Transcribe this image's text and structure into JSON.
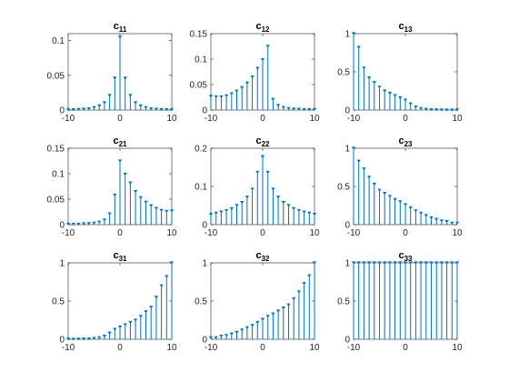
{
  "figure": {
    "background": "#ffffff",
    "stem_color": "#0072bd",
    "axis_color": "#262626"
  },
  "chart_data": [
    {
      "type": "stem",
      "title": "c",
      "title_sub": "11",
      "x": [
        -10,
        -9,
        -8,
        -7,
        -6,
        -5,
        -4,
        -3,
        -2,
        -1,
        0,
        1,
        2,
        3,
        4,
        5,
        6,
        7,
        8,
        9,
        10
      ],
      "y": [
        0.0003,
        0.0005,
        0.0008,
        0.0013,
        0.002,
        0.0035,
        0.006,
        0.0105,
        0.021,
        0.046,
        0.105,
        0.046,
        0.021,
        0.0105,
        0.006,
        0.0035,
        0.002,
        0.0013,
        0.0008,
        0.0005,
        0.0003
      ],
      "xlim": [
        -10,
        10
      ],
      "ylim": [
        0,
        0.11
      ],
      "xticks": [
        -10,
        0,
        10
      ],
      "xtick_labels": [
        "-10",
        "0",
        "10"
      ],
      "yticks": [
        0,
        0.05,
        0.1
      ],
      "ytick_labels": [
        "0",
        "0.05",
        "0.1"
      ]
    },
    {
      "type": "stem",
      "title": "c",
      "title_sub": "12",
      "x": [
        -10,
        -9,
        -8,
        -7,
        -6,
        -5,
        -4,
        -3,
        -2,
        -1,
        0,
        1,
        2,
        3,
        4,
        5,
        6,
        7,
        8,
        9,
        10
      ],
      "y": [
        0.027,
        0.026,
        0.026,
        0.028,
        0.032,
        0.037,
        0.044,
        0.053,
        0.065,
        0.082,
        0.099,
        0.125,
        0.021,
        0.009,
        0.005,
        0.003,
        0.002,
        0.0015,
        0.001,
        0.001,
        0.001
      ],
      "xlim": [
        -10,
        10
      ],
      "ylim": [
        0,
        0.15
      ],
      "xticks": [
        -10,
        0,
        10
      ],
      "xtick_labels": [
        "-10",
        "0",
        "10"
      ],
      "yticks": [
        0,
        0.05,
        0.1,
        0.15
      ],
      "ytick_labels": [
        "0",
        "0.05",
        "0.1",
        "0.15"
      ]
    },
    {
      "type": "stem",
      "title": "c",
      "title_sub": "13",
      "x": [
        -10,
        -9,
        -8,
        -7,
        -6,
        -5,
        -4,
        -3,
        -2,
        -1,
        0,
        1,
        2,
        3,
        4,
        5,
        6,
        7,
        8,
        9,
        10
      ],
      "y": [
        1,
        0.82,
        0.55,
        0.42,
        0.36,
        0.3,
        0.25,
        0.22,
        0.19,
        0.16,
        0.13,
        0.08,
        0.04,
        0.02,
        0.01,
        0.005,
        0.003,
        0.002,
        0.001,
        0.001,
        0.001
      ],
      "xlim": [
        -10,
        10
      ],
      "ylim": [
        0,
        1
      ],
      "xticks": [
        -10,
        0,
        10
      ],
      "xtick_labels": [
        "-10",
        "0",
        "10"
      ],
      "yticks": [
        0,
        0.5,
        1
      ],
      "ytick_labels": [
        "0",
        "0.5",
        "1"
      ]
    },
    {
      "type": "stem",
      "title": "c",
      "title_sub": "21",
      "x": [
        -10,
        -9,
        -8,
        -7,
        -6,
        -5,
        -4,
        -3,
        -2,
        -1,
        0,
        1,
        2,
        3,
        4,
        5,
        6,
        7,
        8,
        9,
        10
      ],
      "y": [
        0.001,
        0.001,
        0.001,
        0.0015,
        0.002,
        0.003,
        0.005,
        0.009,
        0.021,
        0.058,
        0.125,
        0.099,
        0.082,
        0.065,
        0.053,
        0.044,
        0.037,
        0.032,
        0.028,
        0.026,
        0.027
      ],
      "xlim": [
        -10,
        10
      ],
      "ylim": [
        0,
        0.15
      ],
      "xticks": [
        -10,
        0,
        10
      ],
      "xtick_labels": [
        "-10",
        "0",
        "10"
      ],
      "yticks": [
        0,
        0.05,
        0.1,
        0.15
      ],
      "ytick_labels": [
        "0",
        "0.05",
        "0.1",
        "0.15"
      ]
    },
    {
      "type": "stem",
      "title": "c",
      "title_sub": "22",
      "x": [
        -10,
        -9,
        -8,
        -7,
        -6,
        -5,
        -4,
        -3,
        -2,
        -1,
        0,
        1,
        2,
        3,
        4,
        5,
        6,
        7,
        8,
        9,
        10
      ],
      "y": [
        0.027,
        0.03,
        0.033,
        0.037,
        0.042,
        0.05,
        0.058,
        0.072,
        0.093,
        0.137,
        0.178,
        0.137,
        0.093,
        0.072,
        0.058,
        0.05,
        0.042,
        0.037,
        0.033,
        0.03,
        0.027
      ],
      "xlim": [
        -10,
        10
      ],
      "ylim": [
        0,
        0.2
      ],
      "xticks": [
        -10,
        0,
        10
      ],
      "xtick_labels": [
        "-10",
        "0",
        "10"
      ],
      "yticks": [
        0,
        0.1,
        0.2
      ],
      "ytick_labels": [
        "0",
        "0.1",
        "0.2"
      ]
    },
    {
      "type": "stem",
      "title": "c",
      "title_sub": "23",
      "x": [
        -10,
        -9,
        -8,
        -7,
        -6,
        -5,
        -4,
        -3,
        -2,
        -1,
        0,
        1,
        2,
        3,
        4,
        5,
        6,
        7,
        8,
        9,
        10
      ],
      "y": [
        1,
        0.83,
        0.73,
        0.62,
        0.53,
        0.45,
        0.41,
        0.37,
        0.33,
        0.3,
        0.26,
        0.22,
        0.18,
        0.15,
        0.12,
        0.09,
        0.07,
        0.05,
        0.04,
        0.02,
        0.02
      ],
      "xlim": [
        -10,
        10
      ],
      "ylim": [
        0,
        1
      ],
      "xticks": [
        -10,
        0,
        10
      ],
      "xtick_labels": [
        "-10",
        "0",
        "10"
      ],
      "yticks": [
        0,
        0.5,
        1
      ],
      "ytick_labels": [
        "0",
        "0.5",
        "1"
      ]
    },
    {
      "type": "stem",
      "title": "c",
      "title_sub": "31",
      "x": [
        -10,
        -9,
        -8,
        -7,
        -6,
        -5,
        -4,
        -3,
        -2,
        -1,
        0,
        1,
        2,
        3,
        4,
        5,
        6,
        7,
        8,
        9,
        10
      ],
      "y": [
        0.001,
        0.001,
        0.002,
        0.003,
        0.005,
        0.01,
        0.02,
        0.04,
        0.08,
        0.13,
        0.16,
        0.19,
        0.22,
        0.25,
        0.3,
        0.36,
        0.42,
        0.55,
        0.7,
        0.82,
        1
      ],
      "xlim": [
        -10,
        10
      ],
      "ylim": [
        0,
        1
      ],
      "xticks": [
        -10,
        0,
        10
      ],
      "xtick_labels": [
        "-10",
        "0",
        "10"
      ],
      "yticks": [
        0,
        0.5,
        1
      ],
      "ytick_labels": [
        "0",
        "0.5",
        "1"
      ]
    },
    {
      "type": "stem",
      "title": "c",
      "title_sub": "32",
      "x": [
        -10,
        -9,
        -8,
        -7,
        -6,
        -5,
        -4,
        -3,
        -2,
        -1,
        0,
        1,
        2,
        3,
        4,
        5,
        6,
        7,
        8,
        9,
        10
      ],
      "y": [
        0.02,
        0.02,
        0.04,
        0.05,
        0.07,
        0.09,
        0.12,
        0.15,
        0.18,
        0.22,
        0.26,
        0.3,
        0.33,
        0.37,
        0.41,
        0.45,
        0.53,
        0.62,
        0.73,
        0.83,
        1
      ],
      "xlim": [
        -10,
        10
      ],
      "ylim": [
        0,
        1
      ],
      "xticks": [
        -10,
        0,
        10
      ],
      "xtick_labels": [
        "-10",
        "0",
        "10"
      ],
      "yticks": [
        0,
        0.5,
        1
      ],
      "ytick_labels": [
        "0",
        "0.5",
        "1"
      ]
    },
    {
      "type": "stem",
      "title": "c",
      "title_sub": "33",
      "x": [
        -10,
        -9,
        -8,
        -7,
        -6,
        -5,
        -4,
        -3,
        -2,
        -1,
        0,
        1,
        2,
        3,
        4,
        5,
        6,
        7,
        8,
        9,
        10
      ],
      "y": [
        1,
        1,
        1,
        1,
        1,
        1,
        1,
        1,
        1,
        1,
        1,
        1,
        1,
        1,
        1,
        1,
        1,
        1,
        1,
        1,
        1
      ],
      "xlim": [
        -10,
        10
      ],
      "ylim": [
        0,
        1
      ],
      "xticks": [
        -10,
        0,
        10
      ],
      "xtick_labels": [
        "-10",
        "0",
        "10"
      ],
      "yticks": [
        0,
        0.5,
        1
      ],
      "ytick_labels": [
        "0",
        "0.5",
        "1"
      ]
    }
  ]
}
